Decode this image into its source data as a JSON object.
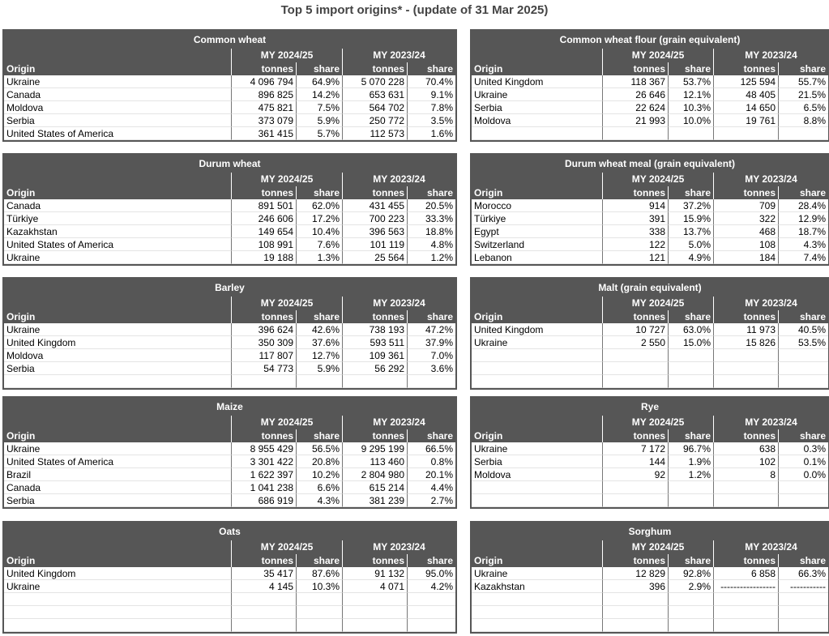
{
  "title": "Top 5 import origins* - (update of 31 Mar 2025)",
  "header": {
    "periods": [
      "MY 2024/25",
      "MY 2023/24"
    ],
    "origin": "Origin",
    "tonnes": "tonnes",
    "share": "share"
  },
  "tables": [
    {
      "title": "Common wheat",
      "rows": [
        [
          "Ukraine",
          "4 096 794",
          "64.9%",
          "5 070 228",
          "70.4%"
        ],
        [
          "Canada",
          "896 825",
          "14.2%",
          "653 631",
          "9.1%"
        ],
        [
          "Moldova",
          "475 821",
          "7.5%",
          "564 702",
          "7.8%"
        ],
        [
          "Serbia",
          "373 079",
          "5.9%",
          "250 772",
          "3.5%"
        ],
        [
          "United States of America",
          "361 415",
          "5.7%",
          "112 573",
          "1.6%"
        ]
      ]
    },
    {
      "title": "Common wheat flour (grain equivalent)",
      "rows": [
        [
          "United Kingdom",
          "118 367",
          "53.7%",
          "125 594",
          "55.7%"
        ],
        [
          "Ukraine",
          "26 646",
          "12.1%",
          "48 405",
          "21.5%"
        ],
        [
          "Serbia",
          "22 624",
          "10.3%",
          "14 650",
          "6.5%"
        ],
        [
          "Moldova",
          "21 993",
          "10.0%",
          "19 761",
          "8.8%"
        ]
      ]
    },
    {
      "title": "Durum wheat",
      "rows": [
        [
          "Canada",
          "891 501",
          "62.0%",
          "431 455",
          "20.5%"
        ],
        [
          "Türkiye",
          "246 606",
          "17.2%",
          "700 223",
          "33.3%"
        ],
        [
          "Kazakhstan",
          "149 654",
          "10.4%",
          "396 563",
          "18.8%"
        ],
        [
          "United States of America",
          "108 991",
          "7.6%",
          "101 119",
          "4.8%"
        ],
        [
          "Ukraine",
          "19 188",
          "1.3%",
          "25 564",
          "1.2%"
        ]
      ]
    },
    {
      "title": "Durum wheat meal (grain equivalent)",
      "rows": [
        [
          "Morocco",
          "914",
          "37.2%",
          "709",
          "28.4%"
        ],
        [
          "Türkiye",
          "391",
          "15.9%",
          "322",
          "12.9%"
        ],
        [
          "Egypt",
          "338",
          "13.7%",
          "468",
          "18.7%"
        ],
        [
          "Switzerland",
          "122",
          "5.0%",
          "108",
          "4.3%"
        ],
        [
          "Lebanon",
          "121",
          "4.9%",
          "184",
          "7.4%"
        ]
      ]
    },
    {
      "title": "Barley",
      "rows": [
        [
          "Ukraine",
          "396 624",
          "42.6%",
          "738 193",
          "47.2%"
        ],
        [
          "United Kingdom",
          "350 309",
          "37.6%",
          "593 511",
          "37.9%"
        ],
        [
          "Moldova",
          "117 807",
          "12.7%",
          "109 361",
          "7.0%"
        ],
        [
          "Serbia",
          "54 773",
          "5.9%",
          "56 292",
          "3.6%"
        ]
      ]
    },
    {
      "title": "Malt (grain equivalent)",
      "rows": [
        [
          "United Kingdom",
          "10 727",
          "63.0%",
          "11 973",
          "40.5%"
        ],
        [
          "Ukraine",
          "2 550",
          "15.0%",
          "15 826",
          "53.5%"
        ]
      ]
    },
    {
      "title": "Maize",
      "rows": [
        [
          "Ukraine",
          "8 955 429",
          "56.5%",
          "9 295 199",
          "66.5%"
        ],
        [
          "United States of America",
          "3 301 422",
          "20.8%",
          "113 460",
          "0.8%"
        ],
        [
          "Brazil",
          "1 622 397",
          "10.2%",
          "2 804 980",
          "20.1%"
        ],
        [
          "Canada",
          "1 041 238",
          "6.6%",
          "615 214",
          "4.4%"
        ],
        [
          "Serbia",
          "686 919",
          "4.3%",
          "381 239",
          "2.7%"
        ]
      ]
    },
    {
      "title": "Rye",
      "rows": [
        [
          "Ukraine",
          "7 172",
          "96.7%",
          "638",
          "0.3%"
        ],
        [
          "Serbia",
          "144",
          "1.9%",
          "102",
          "0.1%"
        ],
        [
          "Moldova",
          "92",
          "1.2%",
          "8",
          "0.0%"
        ]
      ]
    },
    {
      "title": "Oats",
      "rows": [
        [
          "United Kingdom",
          "35 417",
          "87.6%",
          "91 132",
          "95.0%"
        ],
        [
          "Ukraine",
          "4 145",
          "10.3%",
          "4 071",
          "4.2%"
        ]
      ]
    },
    {
      "title": "Sorghum",
      "rows": [
        [
          "Ukraine",
          "12 829",
          "92.8%",
          "6 858",
          "66.3%"
        ],
        [
          "Kazakhstan",
          "396",
          "2.9%",
          "-----------------",
          "-----------"
        ]
      ]
    }
  ]
}
